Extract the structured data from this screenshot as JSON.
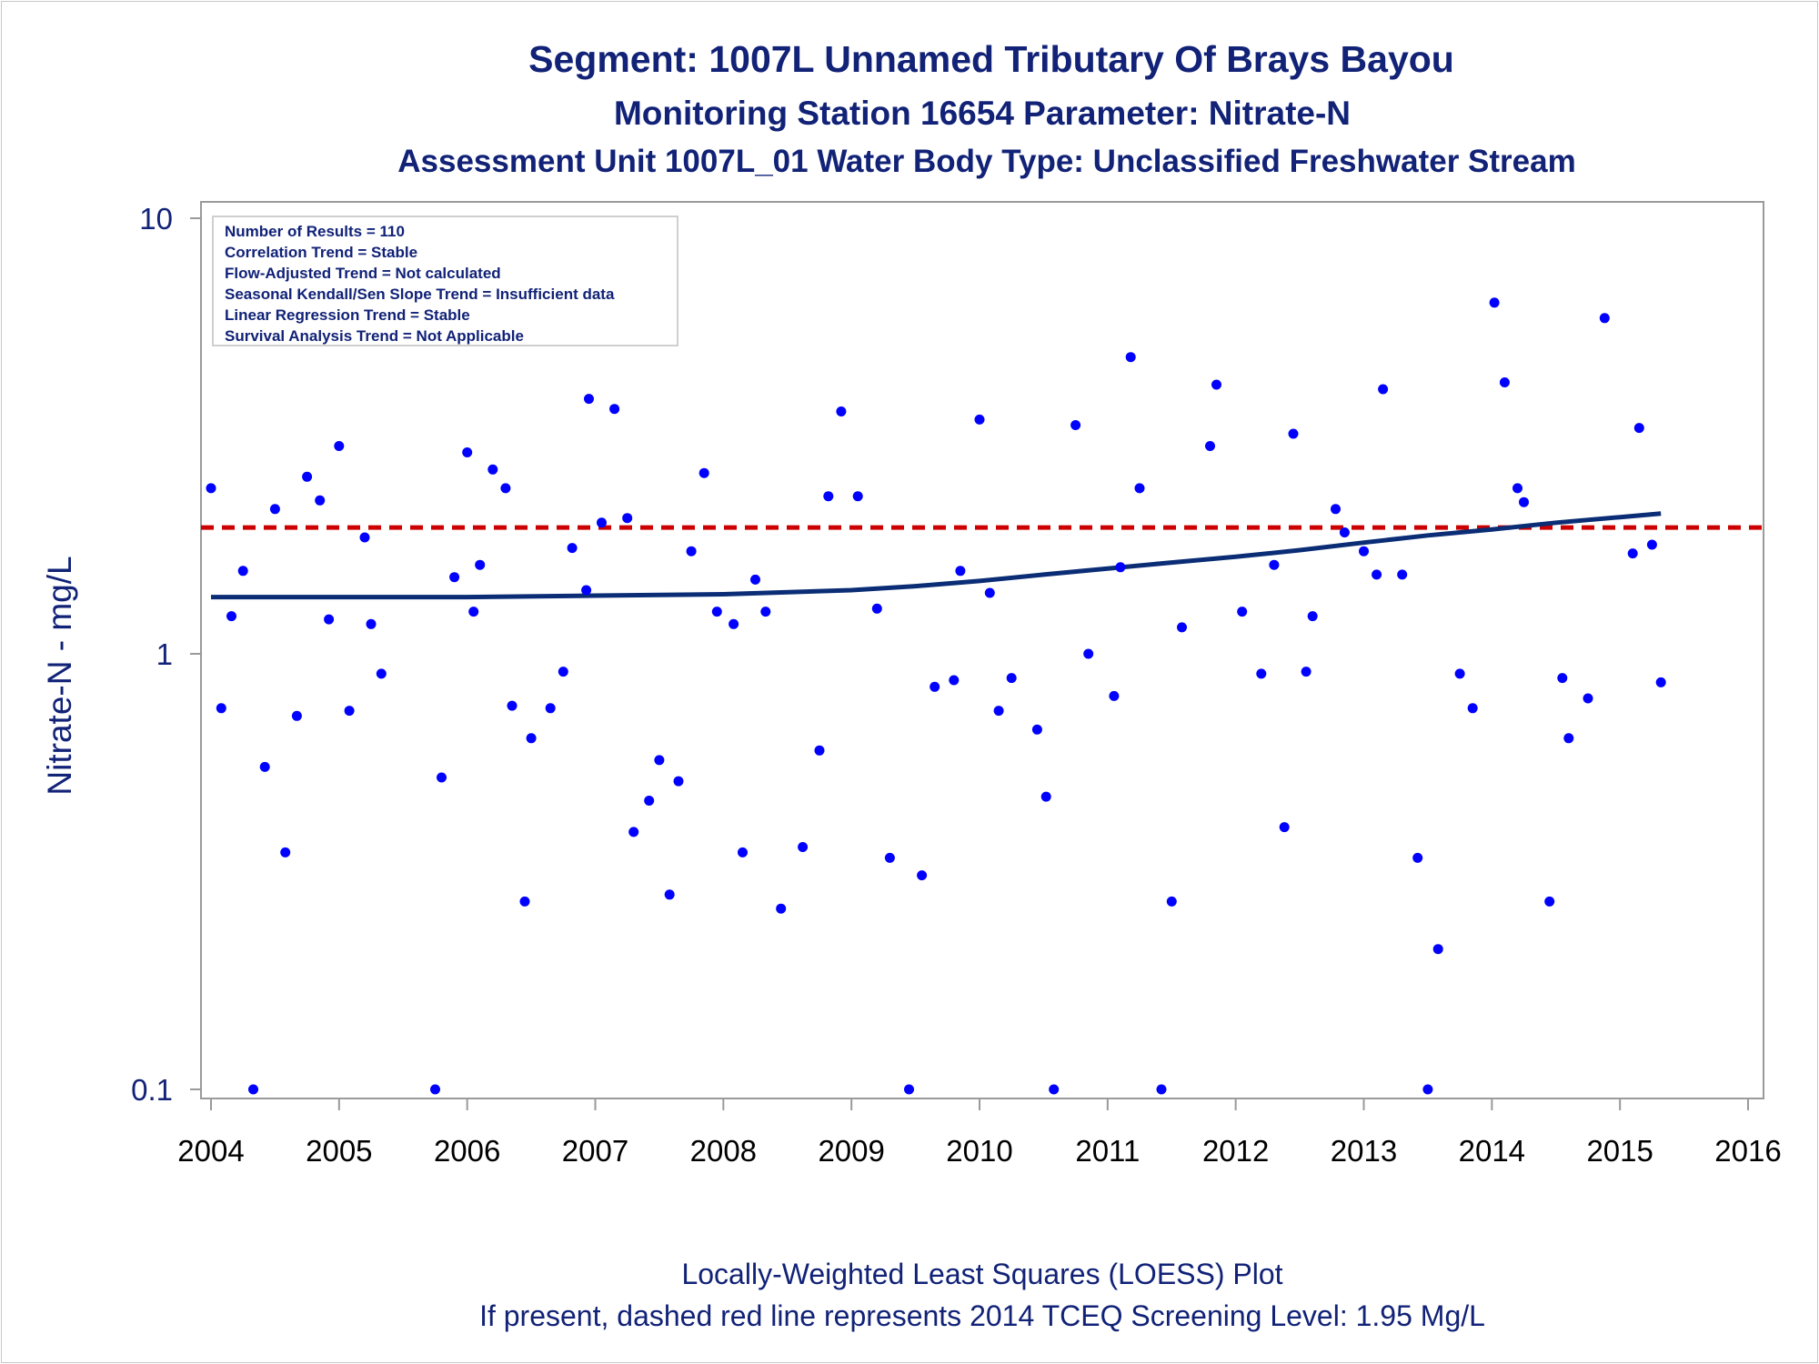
{
  "chart_data": {
    "type": "scatter",
    "title": "Segment: 1007L  Unnamed Tributary Of Brays Bayou",
    "subtitle": "Monitoring Station 16654 Parameter: Nitrate-N",
    "subtitle2": "Assessment Unit 1007L_01   Water Body Type: Unclassified Freshwater Stream",
    "ylabel": "Nitrate-N - mg/L",
    "y_scale": "log",
    "ylim": [
      0.1,
      10
    ],
    "y_ticks": [
      "0.1",
      "1",
      "10"
    ],
    "xlim": [
      2004,
      2016
    ],
    "x_ticks": [
      "2004",
      "2005",
      "2006",
      "2007",
      "2008",
      "2009",
      "2010",
      "2011",
      "2012",
      "2013",
      "2014",
      "2015",
      "2016"
    ],
    "footnote1": "Locally-Weighted Least Squares (LOESS) Plot",
    "footnote2": "If present, dashed red line represents 2014 TCEQ Screening Level: 1.95 Mg/L",
    "stats_box": [
      "Number of Results = 110",
      "Correlation Trend = Stable",
      "Flow-Adjusted Trend = Not calculated",
      "Seasonal Kendall/Sen Slope Trend = Insufficient data",
      "Linear Regression Trend = Stable",
      "Survival Analysis Trend = Not Applicable"
    ],
    "screening_level": 1.95,
    "colors": {
      "points": "#0000ff",
      "loess": "#0a2d75",
      "screening": "#cc0000",
      "text": "#112277",
      "axis": "#9a9a9a"
    },
    "points": [
      {
        "x": 2004.0,
        "y": 2.4
      },
      {
        "x": 2004.08,
        "y": 0.75
      },
      {
        "x": 2004.16,
        "y": 1.22
      },
      {
        "x": 2004.25,
        "y": 1.55
      },
      {
        "x": 2004.33,
        "y": 0.1
      },
      {
        "x": 2004.42,
        "y": 0.55
      },
      {
        "x": 2004.5,
        "y": 2.15
      },
      {
        "x": 2004.58,
        "y": 0.35
      },
      {
        "x": 2004.67,
        "y": 0.72
      },
      {
        "x": 2004.75,
        "y": 2.55
      },
      {
        "x": 2004.85,
        "y": 2.25
      },
      {
        "x": 2004.92,
        "y": 1.2
      },
      {
        "x": 2005.0,
        "y": 3.0
      },
      {
        "x": 2005.08,
        "y": 0.74
      },
      {
        "x": 2005.2,
        "y": 1.85
      },
      {
        "x": 2005.25,
        "y": 1.17
      },
      {
        "x": 2005.33,
        "y": 0.9
      },
      {
        "x": 2005.75,
        "y": 0.1
      },
      {
        "x": 2005.8,
        "y": 0.52
      },
      {
        "x": 2005.9,
        "y": 1.5
      },
      {
        "x": 2006.0,
        "y": 2.9
      },
      {
        "x": 2006.05,
        "y": 1.25
      },
      {
        "x": 2006.1,
        "y": 1.6
      },
      {
        "x": 2006.2,
        "y": 2.65
      },
      {
        "x": 2006.3,
        "y": 2.4
      },
      {
        "x": 2006.35,
        "y": 0.76
      },
      {
        "x": 2006.45,
        "y": 0.27
      },
      {
        "x": 2006.5,
        "y": 0.64
      },
      {
        "x": 2006.65,
        "y": 0.75
      },
      {
        "x": 2006.75,
        "y": 0.91
      },
      {
        "x": 2006.82,
        "y": 1.75
      },
      {
        "x": 2006.93,
        "y": 1.4
      },
      {
        "x": 2006.95,
        "y": 3.85
      },
      {
        "x": 2007.05,
        "y": 2.0
      },
      {
        "x": 2007.15,
        "y": 3.65
      },
      {
        "x": 2007.25,
        "y": 2.05
      },
      {
        "x": 2007.3,
        "y": 0.39
      },
      {
        "x": 2007.42,
        "y": 0.46
      },
      {
        "x": 2007.5,
        "y": 0.57
      },
      {
        "x": 2007.58,
        "y": 0.28
      },
      {
        "x": 2007.65,
        "y": 0.51
      },
      {
        "x": 2007.75,
        "y": 1.72
      },
      {
        "x": 2007.85,
        "y": 2.6
      },
      {
        "x": 2007.95,
        "y": 1.25
      },
      {
        "x": 2008.08,
        "y": 1.17
      },
      {
        "x": 2008.15,
        "y": 0.35
      },
      {
        "x": 2008.25,
        "y": 1.48
      },
      {
        "x": 2008.33,
        "y": 1.25
      },
      {
        "x": 2008.45,
        "y": 0.26
      },
      {
        "x": 2008.62,
        "y": 0.36
      },
      {
        "x": 2008.75,
        "y": 0.6
      },
      {
        "x": 2008.82,
        "y": 2.3
      },
      {
        "x": 2008.92,
        "y": 3.6
      },
      {
        "x": 2009.05,
        "y": 2.3
      },
      {
        "x": 2009.2,
        "y": 1.27
      },
      {
        "x": 2009.3,
        "y": 0.34
      },
      {
        "x": 2009.45,
        "y": 0.1
      },
      {
        "x": 2009.55,
        "y": 0.31
      },
      {
        "x": 2009.65,
        "y": 0.84
      },
      {
        "x": 2009.8,
        "y": 0.87
      },
      {
        "x": 2009.85,
        "y": 1.55
      },
      {
        "x": 2010.0,
        "y": 3.45
      },
      {
        "x": 2010.08,
        "y": 1.38
      },
      {
        "x": 2010.15,
        "y": 0.74
      },
      {
        "x": 2010.25,
        "y": 0.88
      },
      {
        "x": 2010.45,
        "y": 0.67
      },
      {
        "x": 2010.52,
        "y": 0.47
      },
      {
        "x": 2010.58,
        "y": 0.1
      },
      {
        "x": 2010.75,
        "y": 3.35
      },
      {
        "x": 2010.85,
        "y": 1.0
      },
      {
        "x": 2011.05,
        "y": 0.8
      },
      {
        "x": 2011.1,
        "y": 1.58
      },
      {
        "x": 2011.18,
        "y": 4.8
      },
      {
        "x": 2011.25,
        "y": 2.4
      },
      {
        "x": 2011.42,
        "y": 0.1
      },
      {
        "x": 2011.5,
        "y": 0.27
      },
      {
        "x": 2011.58,
        "y": 1.15
      },
      {
        "x": 2011.8,
        "y": 3.0
      },
      {
        "x": 2011.85,
        "y": 4.15
      },
      {
        "x": 2012.05,
        "y": 1.25
      },
      {
        "x": 2012.2,
        "y": 0.9
      },
      {
        "x": 2012.3,
        "y": 1.6
      },
      {
        "x": 2012.38,
        "y": 0.4
      },
      {
        "x": 2012.45,
        "y": 3.2
      },
      {
        "x": 2012.55,
        "y": 0.91
      },
      {
        "x": 2012.6,
        "y": 1.22
      },
      {
        "x": 2012.78,
        "y": 2.15
      },
      {
        "x": 2012.85,
        "y": 1.9
      },
      {
        "x": 2013.0,
        "y": 1.72
      },
      {
        "x": 2013.1,
        "y": 1.52
      },
      {
        "x": 2013.15,
        "y": 4.05
      },
      {
        "x": 2013.3,
        "y": 1.52
      },
      {
        "x": 2013.42,
        "y": 0.34
      },
      {
        "x": 2013.5,
        "y": 0.1
      },
      {
        "x": 2013.58,
        "y": 0.21
      },
      {
        "x": 2013.75,
        "y": 0.9
      },
      {
        "x": 2013.85,
        "y": 0.75
      },
      {
        "x": 2014.02,
        "y": 6.4
      },
      {
        "x": 2014.1,
        "y": 4.2
      },
      {
        "x": 2014.2,
        "y": 2.4
      },
      {
        "x": 2014.25,
        "y": 2.23
      },
      {
        "x": 2014.45,
        "y": 0.27
      },
      {
        "x": 2014.55,
        "y": 0.88
      },
      {
        "x": 2014.6,
        "y": 0.64
      },
      {
        "x": 2014.75,
        "y": 0.79
      },
      {
        "x": 2014.88,
        "y": 5.9
      },
      {
        "x": 2015.1,
        "y": 1.7
      },
      {
        "x": 2015.15,
        "y": 3.3
      },
      {
        "x": 2015.25,
        "y": 1.78
      },
      {
        "x": 2015.32,
        "y": 0.86
      }
    ],
    "loess": [
      {
        "x": 2004.0,
        "y": 1.35
      },
      {
        "x": 2005.0,
        "y": 1.35
      },
      {
        "x": 2006.0,
        "y": 1.35
      },
      {
        "x": 2007.0,
        "y": 1.36
      },
      {
        "x": 2008.0,
        "y": 1.37
      },
      {
        "x": 2009.0,
        "y": 1.4
      },
      {
        "x": 2009.5,
        "y": 1.43
      },
      {
        "x": 2010.0,
        "y": 1.47
      },
      {
        "x": 2010.5,
        "y": 1.52
      },
      {
        "x": 2011.0,
        "y": 1.57
      },
      {
        "x": 2011.5,
        "y": 1.62
      },
      {
        "x": 2012.0,
        "y": 1.67
      },
      {
        "x": 2012.5,
        "y": 1.73
      },
      {
        "x": 2013.0,
        "y": 1.8
      },
      {
        "x": 2013.5,
        "y": 1.87
      },
      {
        "x": 2014.0,
        "y": 1.93
      },
      {
        "x": 2014.5,
        "y": 2.0
      },
      {
        "x": 2015.0,
        "y": 2.06
      },
      {
        "x": 2015.32,
        "y": 2.1
      }
    ]
  }
}
